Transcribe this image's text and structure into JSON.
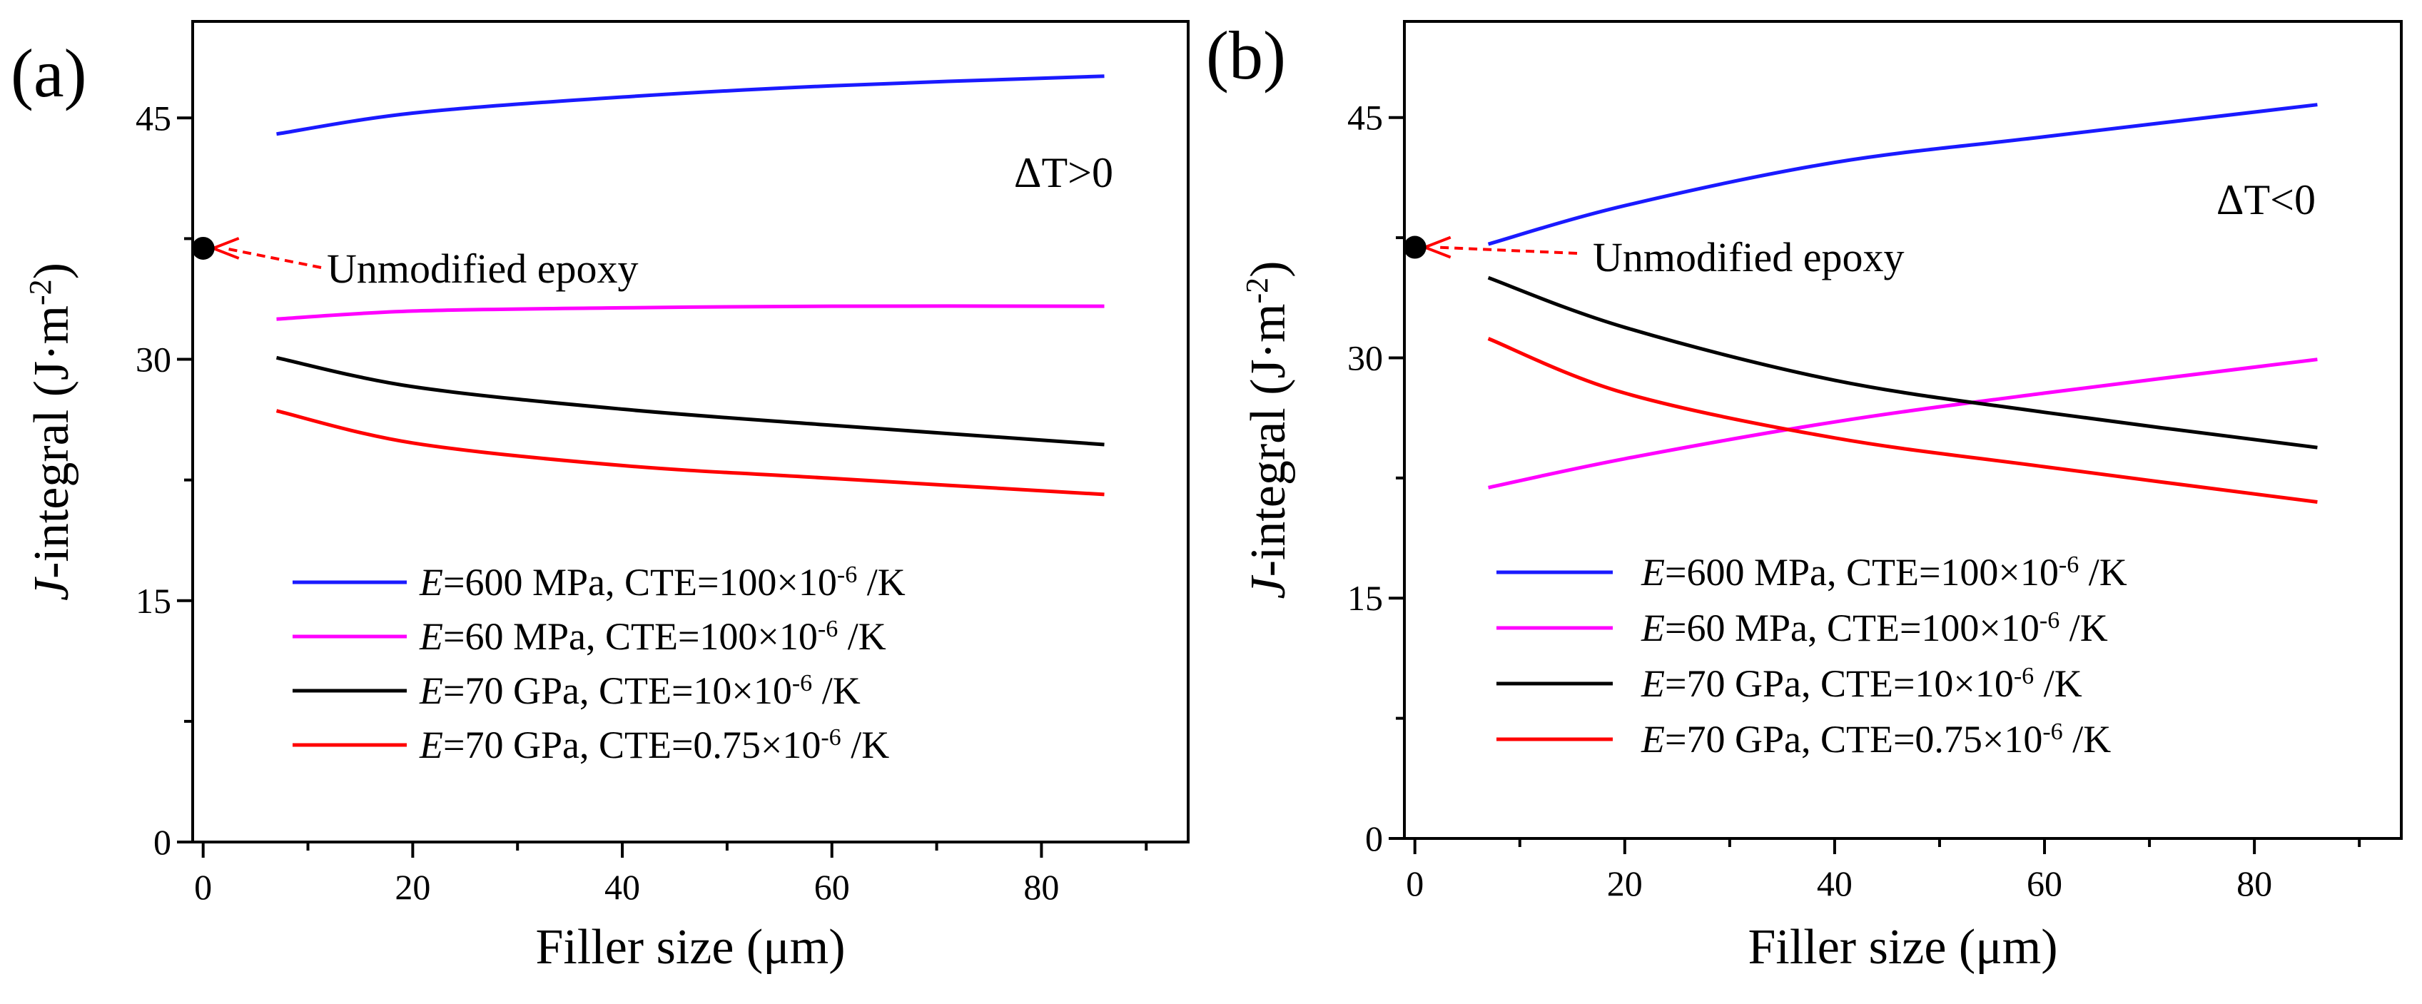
{
  "chart_data": [
    {
      "type": "line",
      "panel_label": "(a)",
      "condition": "ΔT>0",
      "xlabel": "Filler size (μm)",
      "ylabel": "J-integral (J·m⁻²)",
      "ylabel_parts": {
        "italic": "J",
        "rest": "-integral (J·m",
        "sup": "-2",
        "end": ")"
      },
      "xlim": [
        -1,
        94
      ],
      "ylim": [
        0,
        51
      ],
      "xticks": [
        0,
        20,
        40,
        60,
        80
      ],
      "xtick_labels": [
        "0",
        "20",
        "40",
        "60",
        "80"
      ],
      "yticks": [
        0,
        15,
        30,
        45
      ],
      "ytick_labels": [
        "0",
        "15",
        "30",
        "45"
      ],
      "annotation": {
        "text": "Unmodified epoxy",
        "x": 0,
        "y": 36.9
      },
      "x": [
        7,
        20,
        40,
        60,
        86
      ],
      "series": [
        {
          "name": "E=600 MPa, CTE=100×10⁻⁶ /K",
          "E": "600 MPa",
          "cte": "100×10",
          "color": "#1a1aff",
          "values": [
            44.0,
            45.3,
            46.3,
            47.0,
            47.6
          ]
        },
        {
          "name": "E=60 MPa, CTE=100×10⁻⁶ /K",
          "E": "60 MPa",
          "cte": "100×10",
          "color": "#ff00ff",
          "values": [
            32.5,
            33.0,
            33.2,
            33.3,
            33.3
          ]
        },
        {
          "name": "E=70 GPa, CTE=10×10⁻⁶ /K",
          "E": "70 GPa",
          "cte": "10×10",
          "color": "#000000",
          "values": [
            30.1,
            28.3,
            26.9,
            25.9,
            24.7
          ]
        },
        {
          "name": "E=70 GPa, CTE=0.75×10⁻⁶ /K",
          "E": "70 GPa",
          "cte": "0.75×10",
          "color": "#ff0000",
          "values": [
            26.8,
            24.8,
            23.4,
            22.6,
            21.6
          ]
        }
      ],
      "legend_common": {
        "e_var": "E",
        "cte_prefix": ", CTE=",
        "exp": "-6",
        "unit": " /K"
      }
    },
    {
      "type": "line",
      "panel_label": "(b)",
      "condition": "ΔT<0",
      "xlabel": "Filler size (μm)",
      "ylabel": "J-integral (J·m⁻²)",
      "ylabel_parts": {
        "italic": "J",
        "rest": "-integral (J·m",
        "sup": "-2",
        "end": ")"
      },
      "xlim": [
        -1,
        94
      ],
      "ylim": [
        0,
        51
      ],
      "xticks": [
        0,
        20,
        40,
        60,
        80
      ],
      "xtick_labels": [
        "0",
        "20",
        "40",
        "60",
        "80"
      ],
      "yticks": [
        0,
        15,
        30,
        45
      ],
      "ytick_labels": [
        "0",
        "15",
        "30",
        "45"
      ],
      "annotation": {
        "text": "Unmodified epoxy",
        "x": 0,
        "y": 36.9
      },
      "x": [
        7,
        20,
        40,
        60,
        86
      ],
      "series": [
        {
          "name": "E=600 MPa, CTE=100×10⁻⁶ /K",
          "E": "600 MPa",
          "cte": "100×10",
          "color": "#1a1aff",
          "values": [
            37.1,
            39.5,
            42.2,
            43.8,
            45.8
          ]
        },
        {
          "name": "E=60 MPa, CTE=100×10⁻⁶ /K",
          "E": "60 MPa",
          "cte": "100×10",
          "color": "#ff00ff",
          "values": [
            21.9,
            23.7,
            26.0,
            27.8,
            29.9
          ]
        },
        {
          "name": "E=70 GPa, CTE=10×10⁻⁶ /K",
          "E": "70 GPa",
          "cte": "10×10",
          "color": "#000000",
          "values": [
            35.0,
            31.9,
            28.6,
            26.6,
            24.4
          ]
        },
        {
          "name": "E=70 GPa, CTE=0.75×10⁻⁶ /K",
          "E": "70 GPa",
          "cte": "0.75×10",
          "color": "#ff0000",
          "values": [
            31.2,
            27.8,
            25.0,
            23.2,
            21.0
          ]
        }
      ],
      "legend_common": {
        "e_var": "E",
        "cte_prefix": ", CTE=",
        "exp": "-6",
        "unit": " /K"
      }
    }
  ]
}
